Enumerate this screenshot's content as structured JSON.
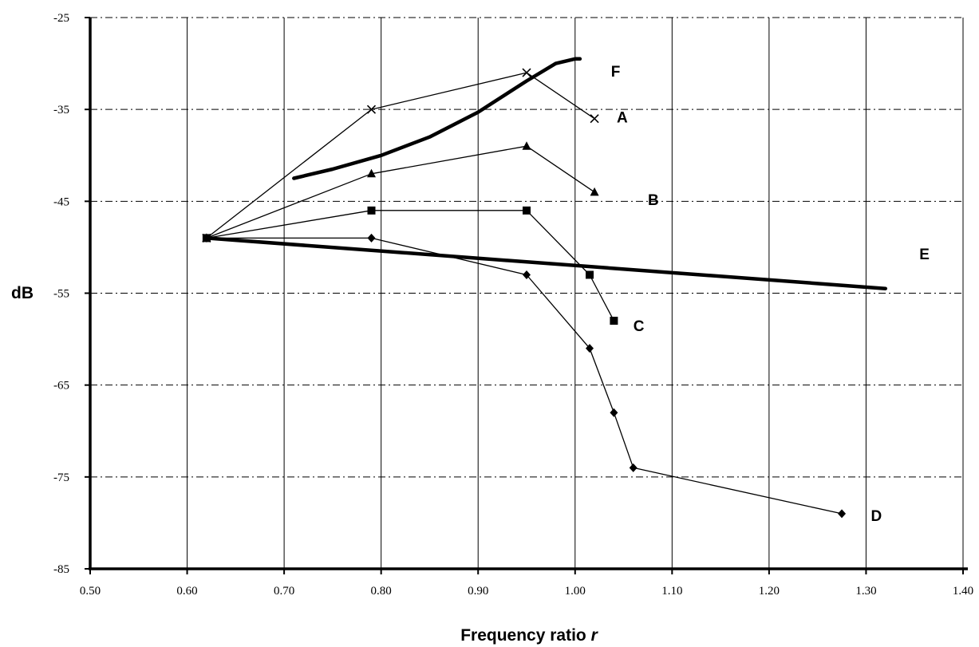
{
  "chart_data": {
    "type": "line",
    "xlabel": "Frequency ratio ",
    "xlabel_italic": "r",
    "ylabel": "dB",
    "xlim": [
      0.5,
      1.4
    ],
    "ylim": [
      -85,
      -25
    ],
    "x_ticks": [
      "0.50",
      "0.60",
      "0.70",
      "0.80",
      "0.90",
      "1.00",
      "1.10",
      "1.20",
      "1.30",
      "1.40"
    ],
    "y_ticks": [
      "-25",
      "-35",
      "-45",
      "-55",
      "-65",
      "-75",
      "-85"
    ],
    "grid": true,
    "series": [
      {
        "name": "A",
        "marker": "x",
        "x": [
          0.62,
          0.79,
          0.95,
          1.02
        ],
        "y": [
          -49,
          -35,
          -31,
          -36
        ]
      },
      {
        "name": "B",
        "marker": "triangle",
        "x": [
          0.62,
          0.79,
          0.95,
          1.02
        ],
        "y": [
          -49,
          -42,
          -39,
          -44
        ]
      },
      {
        "name": "C",
        "marker": "square",
        "x": [
          0.62,
          0.79,
          0.95,
          1.015,
          1.04
        ],
        "y": [
          -49,
          -46,
          -46,
          -53,
          -58
        ]
      },
      {
        "name": "D",
        "marker": "diamond",
        "x": [
          0.62,
          0.79,
          0.95,
          1.015,
          1.04,
          1.06,
          1.275
        ],
        "y": [
          -49,
          -49,
          -53,
          -61,
          -68,
          -74,
          -79
        ]
      },
      {
        "name": "E",
        "marker": "none",
        "thick": true,
        "x": [
          0.62,
          1.32
        ],
        "y": [
          -49,
          -54.5
        ]
      },
      {
        "name": "F",
        "marker": "none",
        "thick": true,
        "x": [
          0.71,
          0.75,
          0.8,
          0.85,
          0.9,
          0.95,
          0.98,
          1.0,
          1.005
        ],
        "y": [
          -42.5,
          -41.5,
          -40.0,
          -38.0,
          -35.3,
          -31.9,
          -30.0,
          -29.5,
          -29.5
        ]
      }
    ],
    "series_labels": [
      {
        "text": "A",
        "x": 1.043,
        "y": -35.8
      },
      {
        "text": "B",
        "x": 1.075,
        "y": -44.8
      },
      {
        "text": "C",
        "x": 1.06,
        "y": -58.5
      },
      {
        "text": "D",
        "x": 1.305,
        "y": -79.2
      },
      {
        "text": "E",
        "x": 1.355,
        "y": -50.7
      },
      {
        "text": "F",
        "x": 1.037,
        "y": -30.8
      }
    ]
  }
}
